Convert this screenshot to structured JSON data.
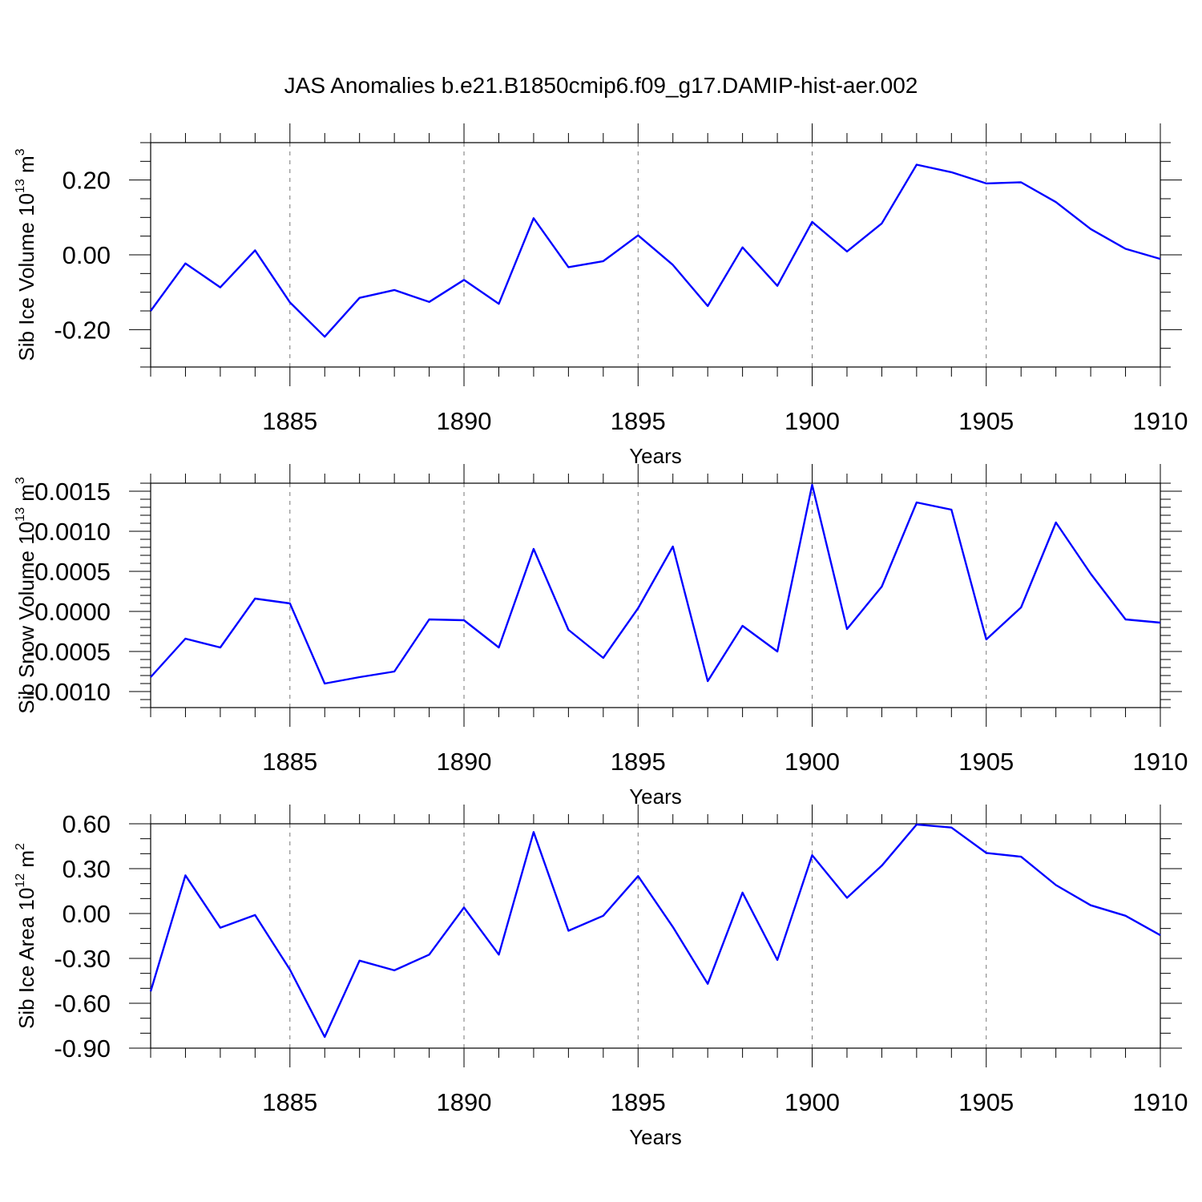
{
  "title": "JAS Anomalies b.e21.B1850cmip6.f09_g17.DAMIP-hist-aer.002",
  "chart_data": [
    {
      "type": "line",
      "ylabel": "Sib Ice Volume 10",
      "ylabel_sup": "13",
      "ylabel_unit": " m",
      "ylabel_unit_sup": "3",
      "xlabel": "Years",
      "xlim": [
        1881,
        1910
      ],
      "ylim": [
        -0.3,
        0.3
      ],
      "xticks": [
        1885,
        1890,
        1895,
        1900,
        1905,
        1910
      ],
      "yticks": [
        -0.2,
        0.0,
        0.2
      ],
      "ytick_labels": [
        "-0.20",
        "0.00",
        "0.20"
      ],
      "yminor": [
        -0.3,
        -0.25,
        -0.15,
        -0.1,
        -0.05,
        0.05,
        0.1,
        0.15,
        0.25,
        0.3
      ],
      "grid": "vertical dashed at major x ticks",
      "x": [
        1881,
        1882,
        1883,
        1884,
        1885,
        1886,
        1887,
        1888,
        1889,
        1890,
        1891,
        1892,
        1893,
        1894,
        1895,
        1896,
        1897,
        1898,
        1899,
        1900,
        1901,
        1902,
        1903,
        1904,
        1905,
        1906,
        1907,
        1908,
        1909,
        1910
      ],
      "values": [
        -0.15,
        -0.023,
        -0.087,
        0.012,
        -0.127,
        -0.219,
        -0.115,
        -0.094,
        -0.126,
        -0.067,
        -0.131,
        0.098,
        -0.033,
        -0.017,
        0.052,
        -0.027,
        -0.137,
        0.02,
        -0.083,
        0.088,
        0.009,
        0.084,
        0.241,
        0.221,
        0.191,
        0.194,
        0.141,
        0.069,
        0.016,
        -0.011
      ],
      "color": "#0000ff"
    },
    {
      "type": "line",
      "ylabel": "Sib Snow Volume 10",
      "ylabel_sup": "13",
      "ylabel_unit": " m",
      "ylabel_unit_sup": "3",
      "xlabel": "Years",
      "xlim": [
        1881,
        1910
      ],
      "ylim": [
        -0.0012,
        0.0016
      ],
      "xticks": [
        1885,
        1890,
        1895,
        1900,
        1905,
        1910
      ],
      "yticks": [
        -0.001,
        -0.0005,
        0.0,
        0.0005,
        0.001,
        0.0015
      ],
      "ytick_labels": [
        "-0.0010",
        "-0.0005",
        "0.0000",
        "0.0005",
        "0.0010",
        "0.0015"
      ],
      "yminor": [
        -0.0012,
        -0.0011,
        -0.0009,
        -0.0008,
        -0.0007,
        -0.0006,
        -0.0004,
        -0.0003,
        -0.0002,
        -0.0001,
        0.0001,
        0.0002,
        0.0003,
        0.0004,
        0.0006,
        0.0007,
        0.0008,
        0.0009,
        0.0011,
        0.0012,
        0.0013,
        0.0014,
        0.0016
      ],
      "grid": "vertical dashed at major x ticks",
      "x": [
        1881,
        1882,
        1883,
        1884,
        1885,
        1886,
        1887,
        1888,
        1889,
        1890,
        1891,
        1892,
        1893,
        1894,
        1895,
        1896,
        1897,
        1898,
        1899,
        1900,
        1901,
        1902,
        1903,
        1904,
        1905,
        1906,
        1907,
        1908,
        1909,
        1910
      ],
      "values": [
        -0.00082,
        -0.00034,
        -0.00045,
        0.00016,
        0.0001,
        -0.0009,
        -0.00082,
        -0.00075,
        -0.0001,
        -0.00011,
        -0.00045,
        0.00078,
        -0.00023,
        -0.00058,
        4e-05,
        0.00081,
        -0.00087,
        -0.00018,
        -0.0005,
        0.00158,
        -0.00022,
        0.00031,
        0.00136,
        0.00127,
        -0.00035,
        5e-05,
        0.00111,
        0.00047,
        -0.0001,
        -0.00014
      ],
      "color": "#0000ff"
    },
    {
      "type": "line",
      "ylabel": "Sib Ice Area 10",
      "ylabel_sup": "12",
      "ylabel_unit": " m",
      "ylabel_unit_sup": "2",
      "xlabel": "Years",
      "xlim": [
        1881,
        1910
      ],
      "ylim": [
        -0.9,
        0.6
      ],
      "xticks": [
        1885,
        1890,
        1895,
        1900,
        1905,
        1910
      ],
      "yticks": [
        -0.9,
        -0.6,
        -0.3,
        0.0,
        0.3,
        0.6
      ],
      "ytick_labels": [
        "-0.90",
        "-0.60",
        "-0.30",
        "0.00",
        "0.30",
        "0.60"
      ],
      "yminor": [
        -0.8,
        -0.7,
        -0.5,
        -0.4,
        -0.2,
        -0.1,
        0.1,
        0.2,
        0.4,
        0.5
      ],
      "grid": "vertical dashed at major x ticks",
      "x": [
        1881,
        1882,
        1883,
        1884,
        1885,
        1886,
        1887,
        1888,
        1889,
        1890,
        1891,
        1892,
        1893,
        1894,
        1895,
        1896,
        1897,
        1898,
        1899,
        1900,
        1901,
        1902,
        1903,
        1904,
        1905,
        1906,
        1907,
        1908,
        1909,
        1910
      ],
      "values": [
        -0.52,
        0.255,
        -0.095,
        -0.01,
        -0.375,
        -0.825,
        -0.315,
        -0.38,
        -0.275,
        0.04,
        -0.275,
        0.545,
        -0.115,
        -0.015,
        0.25,
        -0.09,
        -0.47,
        0.14,
        -0.31,
        0.39,
        0.105,
        0.32,
        0.595,
        0.575,
        0.405,
        0.38,
        0.19,
        0.055,
        -0.015,
        -0.145
      ],
      "color": "#0000ff"
    }
  ]
}
